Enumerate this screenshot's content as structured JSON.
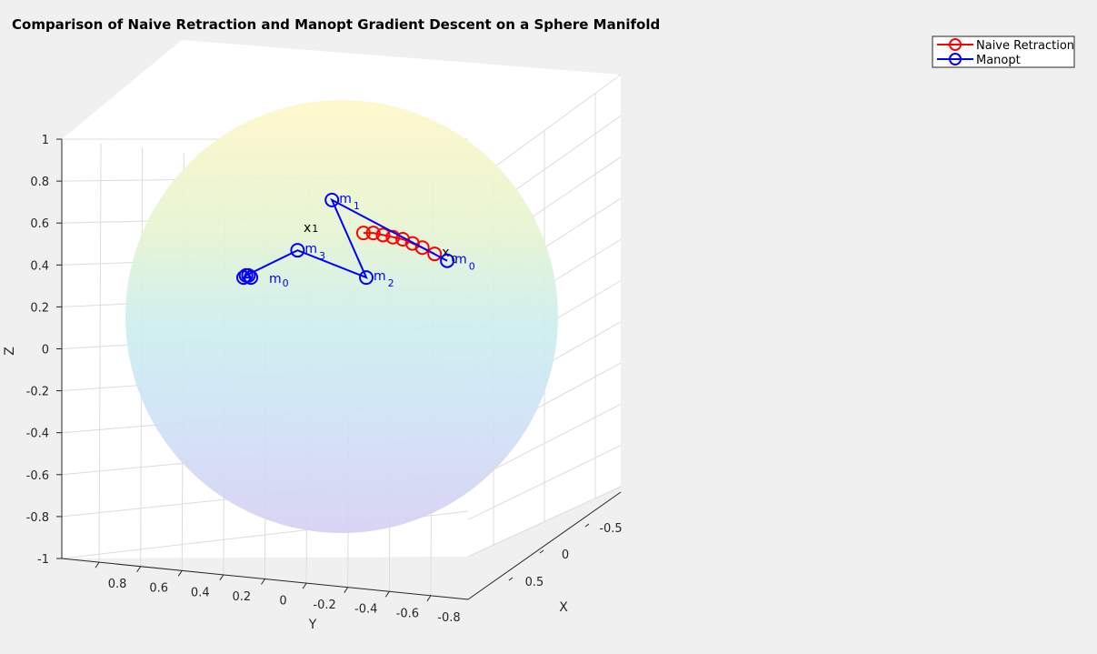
{
  "chart_data": {
    "type": "scatter",
    "title": "Comparison of Naive Retraction and Manopt Gradient Descent on a Sphere Manifold",
    "xlabel": "X",
    "ylabel": "Y",
    "zlabel": "Z",
    "xlim": [
      -0.5,
      0.5
    ],
    "ylim": [
      -0.8,
      0.8
    ],
    "zlim": [
      -1,
      1
    ],
    "x_ticks": [
      "-0.5",
      "0",
      "0.5"
    ],
    "y_ticks": [
      "0.8",
      "0.6",
      "0.4",
      "0.2",
      "0",
      "-0.2",
      "-0.4",
      "-0.6",
      "-0.8"
    ],
    "z_ticks": [
      "1",
      "0.8",
      "0.6",
      "0.4",
      "0.2",
      "0",
      "-0.2",
      "-0.4",
      "-0.6",
      "-0.8",
      "-1"
    ],
    "grid": true,
    "legend_position": "top-right",
    "surface": "unit sphere, semi-transparent, colored by height",
    "series": [
      {
        "name": "Naive Retraction",
        "color": "#ff0000",
        "marker": "circle",
        "points": [
          {
            "y": -0.36,
            "z": 0.47,
            "label": "x 0"
          },
          {
            "y": -0.31,
            "z": 0.5
          },
          {
            "y": -0.27,
            "z": 0.52
          },
          {
            "y": -0.23,
            "z": 0.54
          },
          {
            "y": -0.19,
            "z": 0.55
          },
          {
            "y": -0.15,
            "z": 0.56
          },
          {
            "y": -0.11,
            "z": 0.57
          },
          {
            "y": -0.07,
            "z": 0.57
          }
        ]
      },
      {
        "name": "Manopt",
        "color": "#0000ff",
        "marker": "circle",
        "points": [
          {
            "y": -0.43,
            "z": 0.42,
            "label": "m 0"
          },
          {
            "y": 0.04,
            "z": 0.71,
            "label": "m 1"
          },
          {
            "y": -0.1,
            "z": 0.34,
            "label": "m 2"
          },
          {
            "y": 0.18,
            "z": 0.47,
            "label": "m 3"
          },
          {
            "y": 0.39,
            "z": 0.35
          },
          {
            "y": 0.4,
            "z": 0.34
          },
          {
            "y": 0.37,
            "z": 0.34
          },
          {
            "y": 0.38,
            "z": 0.35
          }
        ]
      }
    ],
    "cluster_labels": [
      {
        "text": "x 1",
        "color": "#000000"
      },
      {
        "text": "m 0",
        "color": "#0000ff"
      }
    ]
  }
}
